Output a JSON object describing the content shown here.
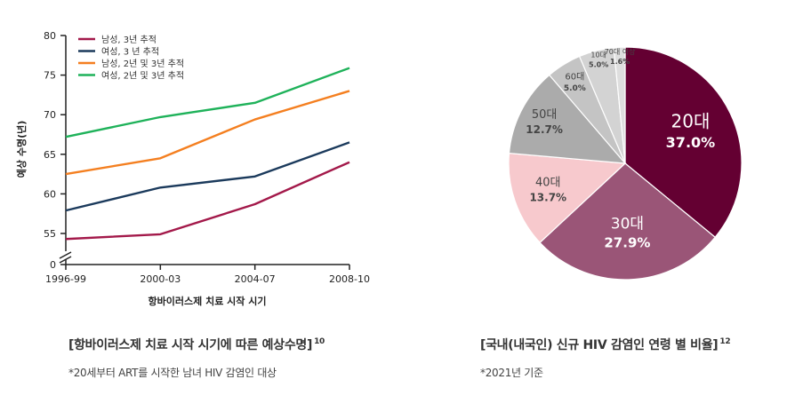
{
  "chart_data": [
    {
      "type": "line",
      "ylabel": "예상 수명(년)",
      "xlabel": "항바이러스제 치료 시작 시기",
      "categories": [
        "1996-99",
        "2000-03",
        "2004-07",
        "2008-10"
      ],
      "yticks": [
        "0",
        "55",
        "60",
        "65",
        "70",
        "75",
        "80"
      ],
      "ylim": [
        53,
        80
      ],
      "axis_break": true,
      "legend_position": "top-left",
      "series": [
        {
          "name": "남성, 3년 추적",
          "color": "#a3194a",
          "values": [
            54.3,
            54.9,
            58.7,
            64.0
          ]
        },
        {
          "name": "여성, 3 년 추적",
          "color": "#1b3a5c",
          "values": [
            57.9,
            60.8,
            62.2,
            66.5
          ]
        },
        {
          "name": "남성, 2년 및 3년 추적",
          "color": "#f47f20",
          "values": [
            62.5,
            64.5,
            69.4,
            73.0
          ]
        },
        {
          "name": "여성, 2년 및 3년 추적",
          "color": "#1fb25a",
          "values": [
            67.2,
            69.7,
            71.5,
            75.9
          ]
        }
      ]
    },
    {
      "type": "pie",
      "slices": [
        {
          "label": "20대",
          "pct_label": "37.0%",
          "value": 37.0,
          "color": "#640032",
          "text_color": "#ffffff"
        },
        {
          "label": "30대",
          "pct_label": "27.9%",
          "value": 27.9,
          "color": "#9a5577",
          "text_color": "#ffffff"
        },
        {
          "label": "40대",
          "pct_label": "13.7%",
          "value": 13.7,
          "color": "#f7c9cd",
          "text_color": "#444444"
        },
        {
          "label": "50대",
          "pct_label": "12.7%",
          "value": 12.7,
          "color": "#ababab",
          "text_color": "#444444"
        },
        {
          "label": "60대",
          "pct_label": "5.0%",
          "value": 5.0,
          "color": "#c4c4c4",
          "text_color": "#444444"
        },
        {
          "label": "10대",
          "pct_label": "5.0%",
          "value": 5.0,
          "color": "#d3d3d3",
          "text_color": "#444444"
        },
        {
          "label": "70대 이상",
          "pct_label": "1.6%",
          "value": 1.6,
          "color": "#dedede",
          "text_color": "#444444"
        }
      ]
    }
  ],
  "captions": {
    "left_title": "[항바이러스제 치료 시작 시기에 따른 예상수명]",
    "left_ref": "10",
    "left_note": "*20세부터 ART를 시작한 남녀 HIV 감염인 대상",
    "right_title": "[국내(내국인) 신규 HIV 감염인 연령 별 비율]",
    "right_ref": "12",
    "right_note": "*2021년 기준"
  }
}
